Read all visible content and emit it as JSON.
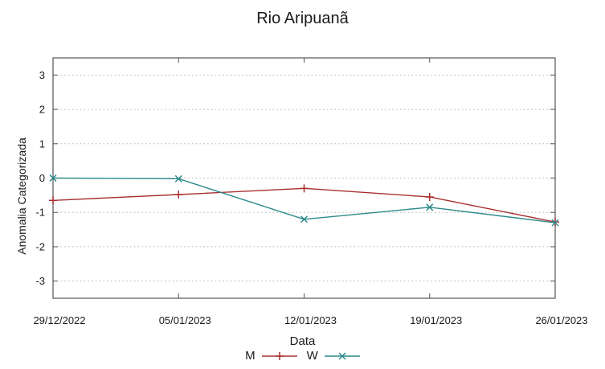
{
  "title": "Rio Aripuanã",
  "chart_data": {
    "type": "line",
    "title": "Rio Aripuanã",
    "xlabel": "Data",
    "ylabel": "Anomalia Categorizada",
    "categories": [
      "29/12/2022",
      "05/01/2023",
      "12/01/2023",
      "19/01/2023",
      "26/01/2023"
    ],
    "series": [
      {
        "name": "M",
        "color": "#a93030",
        "marker": "plus",
        "values": [
          -0.65,
          -0.48,
          -0.3,
          -0.55,
          -1.28
        ]
      },
      {
        "name": "W",
        "color": "#2d8a8a",
        "marker": "cross",
        "values": [
          0.0,
          -0.02,
          -1.2,
          -0.85,
          -1.3
        ]
      }
    ],
    "ylim": [
      -3.5,
      3.5
    ],
    "yticks": [
      3,
      2,
      1,
      0,
      -1,
      -2,
      -3
    ],
    "grid": "horizontal-dotted",
    "legend_position": "bottom-center",
    "axis_color": "#555555",
    "grid_color": "#b5b5b5",
    "text_color": "#1a1a1a"
  }
}
